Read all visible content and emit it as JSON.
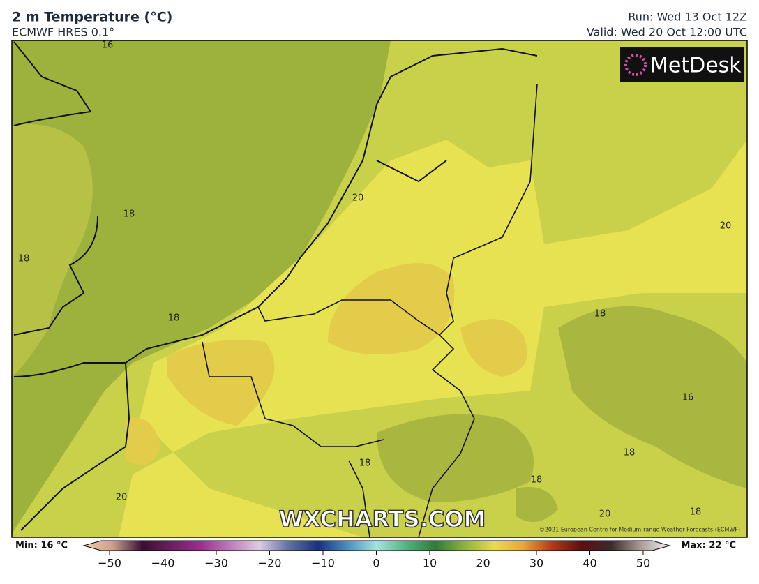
{
  "header": {
    "title": "2 m Temperature (°C)",
    "subtitle": "ECMWF HRES 0.1°",
    "run": "Run: Wed 13 Oct 12Z",
    "valid": "Valid: Wed 20 Oct 12:00 UTC"
  },
  "map": {
    "logo": "MetDesk",
    "watermark": "WXCHARTS.COM",
    "copyright": "©2021 European Centre for Medium-range Weather Forecasts (ECMWF)",
    "contour_labels": [
      16,
      18,
      18,
      18,
      20,
      20,
      18,
      16,
      18,
      18,
      18,
      20,
      20,
      18
    ]
  },
  "colorbar": {
    "min_label": "Min: 16 °C",
    "max_label": "Max: 22 °C",
    "ticks": [
      {
        "value": -50,
        "label": "−50"
      },
      {
        "value": -40,
        "label": "−40"
      },
      {
        "value": -30,
        "label": "−30"
      },
      {
        "value": -20,
        "label": "−20"
      },
      {
        "value": -10,
        "label": "−10"
      },
      0,
      10,
      20,
      30,
      40,
      50
    ]
  }
}
